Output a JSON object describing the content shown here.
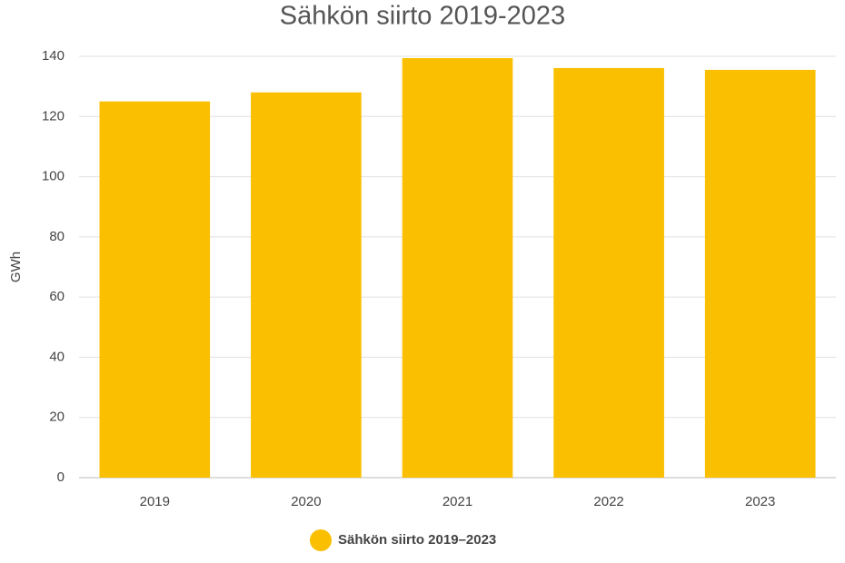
{
  "chart_data": {
    "type": "bar",
    "title": "Sähkön siirto 2019-2023",
    "y_label": "GWh",
    "categories": [
      "2019",
      "2020",
      "2021",
      "2022",
      "2023"
    ],
    "series": [
      {
        "name": "Sähkön siirto 2019–2023",
        "color": "#f9bf00",
        "values": [
          125,
          128,
          139.4,
          136.1,
          135.5
        ]
      }
    ],
    "ylim": [
      0,
      140
    ],
    "yticks": [
      0,
      20,
      40,
      60,
      80,
      100,
      120,
      140
    ],
    "grid": true,
    "legend": "bottom"
  }
}
